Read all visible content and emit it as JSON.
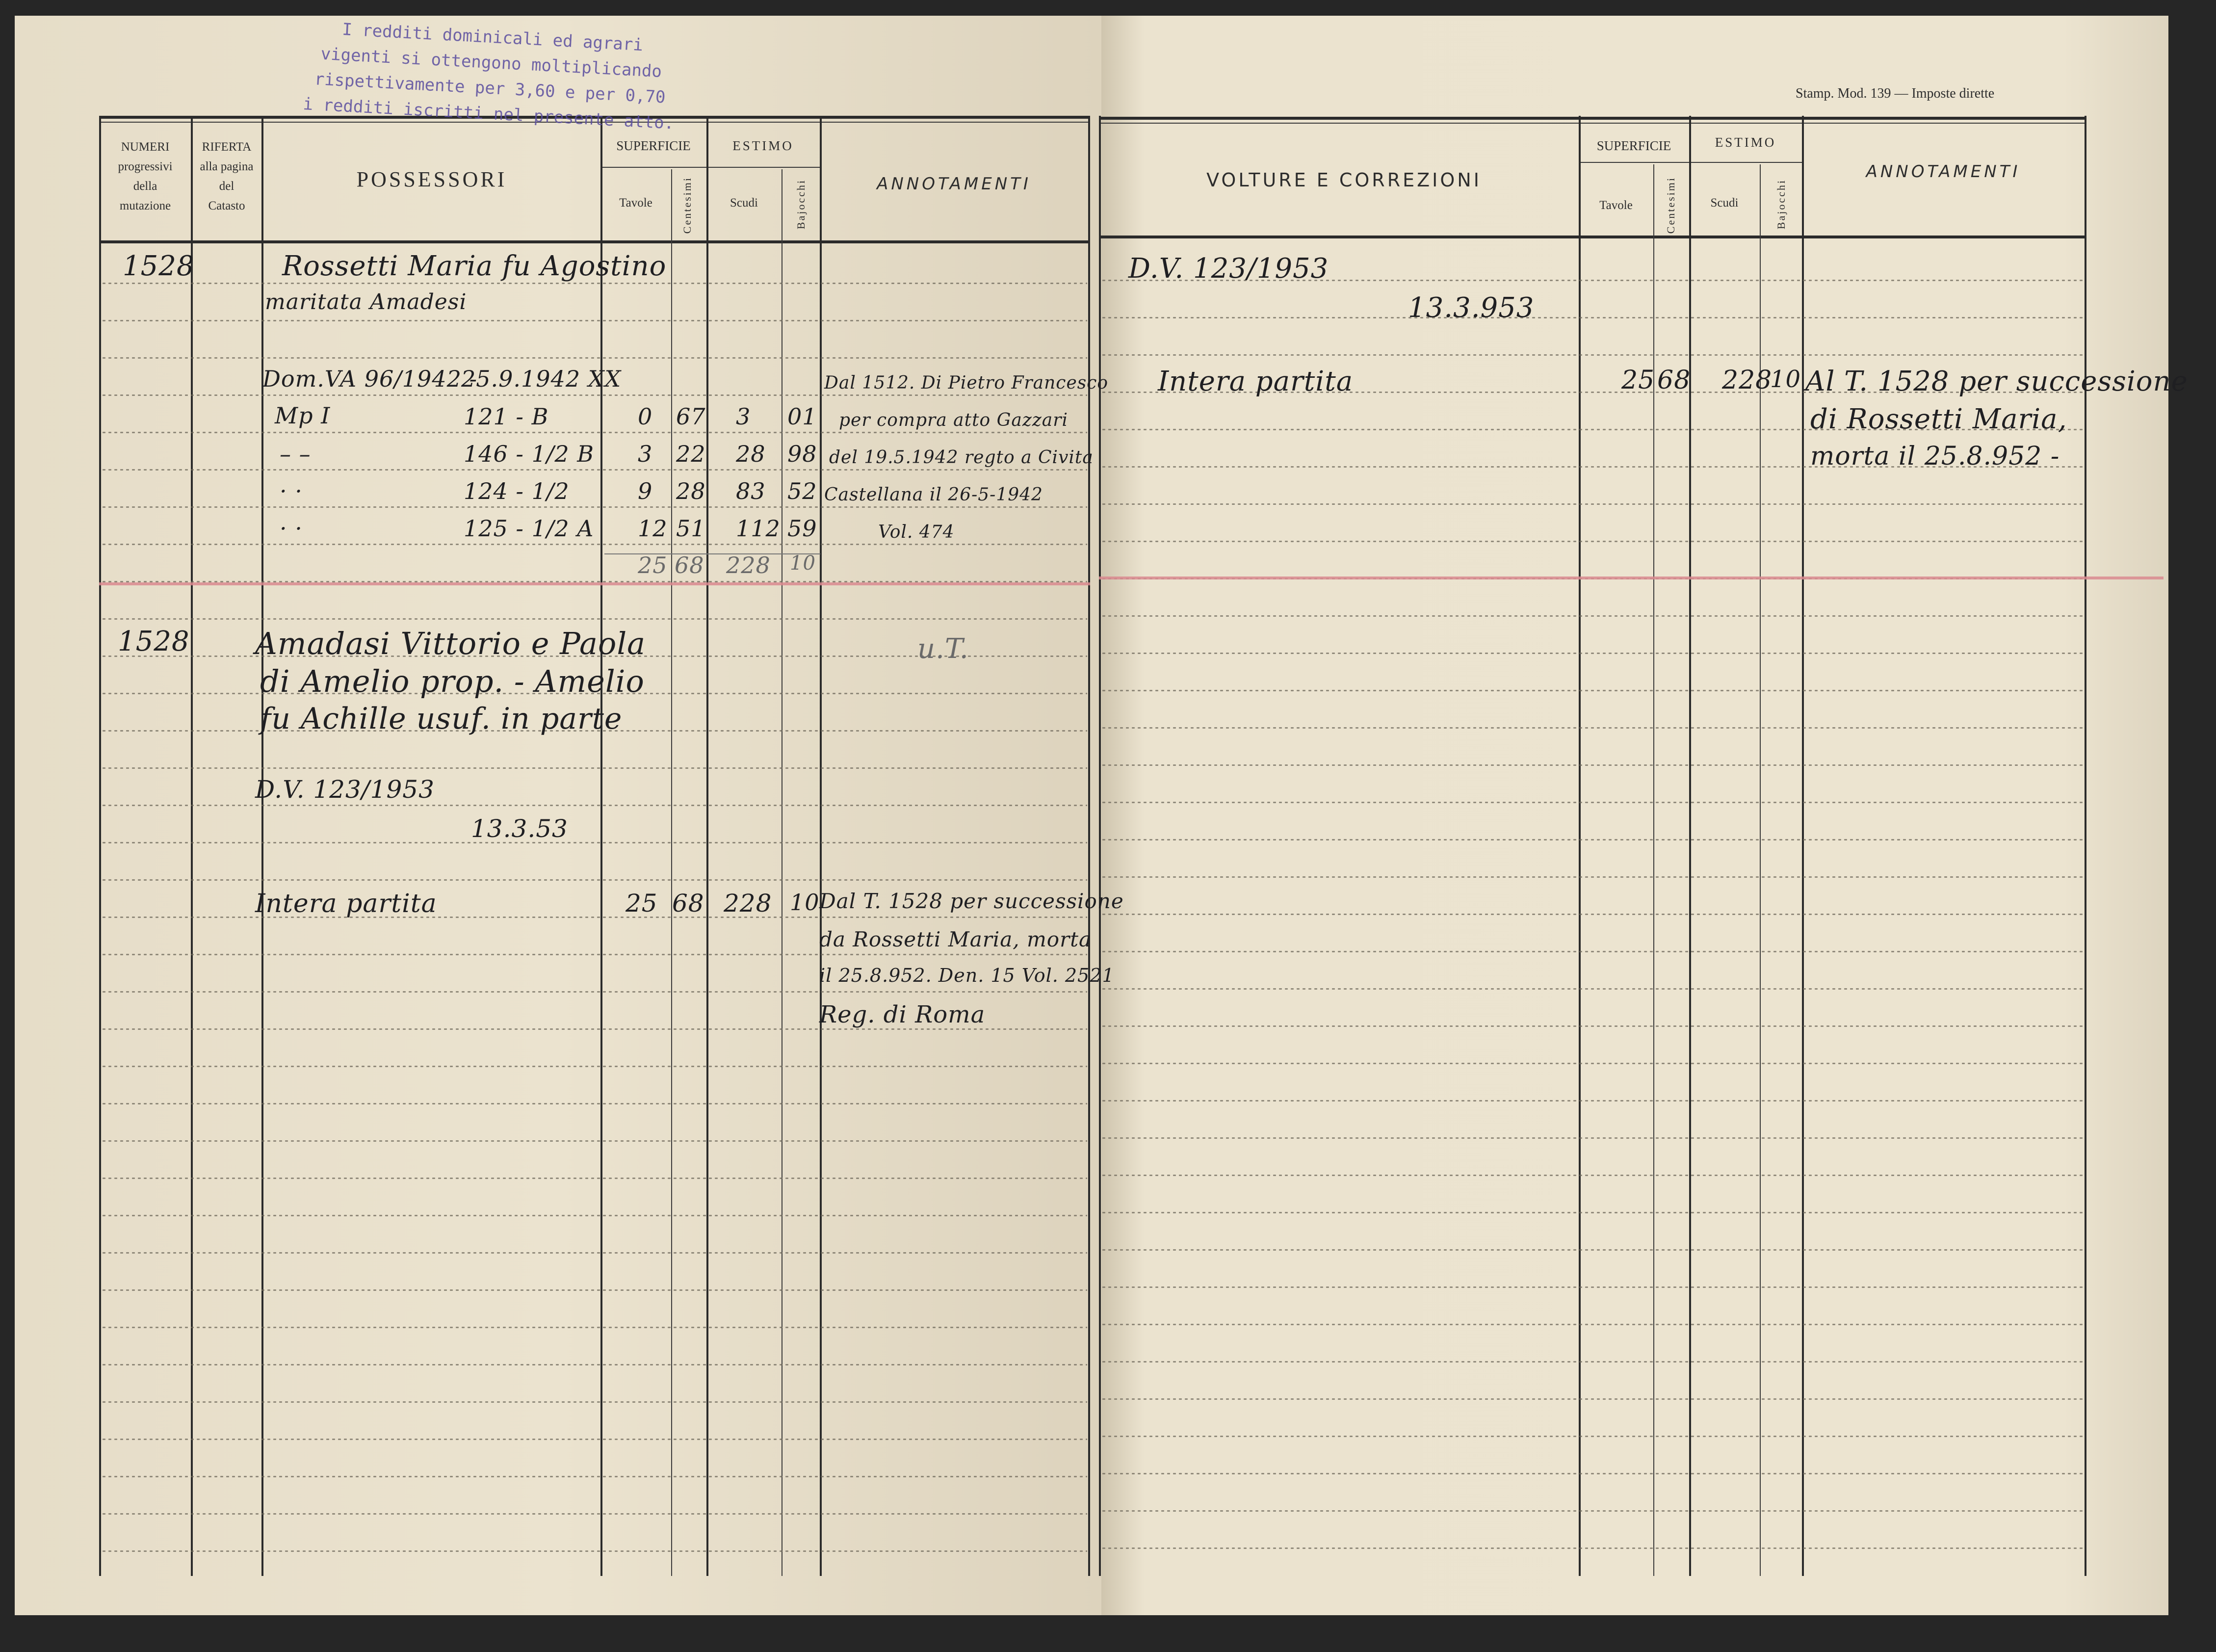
{
  "stamp": {
    "lines": [
      "I redditi dominicali ed agrari",
      "vigenti si ottengono moltiplicando",
      "rispettivamente per 3,60 e per 0,70",
      "i redditi iscritti nel presente atto."
    ],
    "color": "#5b4fa0"
  },
  "print_mark": "Stamp. Mod. 139 — Imposte dirette",
  "left_header": {
    "numeri": [
      "NUMERI",
      "progressivi",
      "della",
      "mutazione"
    ],
    "riferta": [
      "RIFERTA",
      "alla pagina",
      "del",
      "Catasto"
    ],
    "possessori": "POSSESSORI",
    "superficie": "SUPERFICIE",
    "tavole": "Tavole",
    "centesimi": "Centesimi",
    "estimo": "ESTIMO",
    "scudi": "Scudi",
    "bajocchi": "Bajocchi",
    "annotamenti": "ANNOTAMENTI"
  },
  "right_header": {
    "volture": "VOLTURE E CORREZIONI",
    "superficie": "SUPERFICIE",
    "tavole": "Tavole",
    "centesimi": "Centesimi",
    "estimo": "ESTIMO",
    "scudi": "Scudi",
    "bajocchi": "Bajocchi",
    "annotamenti": "ANNOTAMENTI"
  },
  "entries": [
    {
      "numero": "1528",
      "possessori": [
        "Rossetti Maria fu Agostino",
        "maritata Amadesi"
      ],
      "atto": "Dom.VA 96/1942 -",
      "atto_data": "25.9.1942 XX",
      "mappa": "Mp I",
      "parcels": [
        {
          "ditto": "",
          "particella": "121 - B",
          "tavole": "0",
          "centesimi": "67",
          "scudi": "3",
          "bajocchi": "01"
        },
        {
          "ditto": "–  –",
          "particella": "146 - 1/2  B",
          "tavole": "3",
          "centesimi": "22",
          "scudi": "28",
          "bajocchi": "98"
        },
        {
          "ditto": "·  ·",
          "particella": "124 - 1/2",
          "tavole": "9",
          "centesimi": "28",
          "scudi": "83",
          "bajocchi": "52"
        },
        {
          "ditto": "·  ·",
          "particella": "125 - 1/2  A",
          "tavole": "12",
          "centesimi": "51",
          "scudi": "112",
          "bajocchi": "59"
        }
      ],
      "totale": {
        "tavole": "25",
        "centesimi": "68",
        "scudi": "228",
        "bajocchi": "10"
      },
      "annotamenti": [
        "Dal 1512. Di Pietro Francesco",
        "per compra atto Gazzari",
        "del 19.5.1942 regto a Civita",
        "Castellana il 26-5-1942",
        "Vol. 474"
      ]
    },
    {
      "numero": "1528",
      "possessori": [
        "Amadasi Vittorio e Paola",
        "di Amelio prop. - Amelio",
        "fu Achille usuf. in parte"
      ],
      "atto": "D.V. 123/1953",
      "atto_data": "13.3.53",
      "partita": "Intera partita",
      "totale": {
        "tavole": "25",
        "centesimi": "68",
        "scudi": "228",
        "bajocchi": "10"
      },
      "annotamenti_top": "u.T.",
      "annotamenti": [
        "Dal T. 1528 per successione",
        "da Rossetti Maria, morta",
        "il 25.8.952. Den. 15 Vol. 2521",
        "Reg. di Roma"
      ]
    }
  ],
  "volture": {
    "atto": "D.V. 123/1953",
    "data": "13.3.953",
    "partita": "Intera partita",
    "tavole": "25",
    "centesimi": "68",
    "scudi": "228",
    "bajocchi": "10",
    "annotamenti": [
      "Al T. 1528 per successione",
      "di Rossetti Maria,",
      "morta il 25.8.952 -"
    ]
  },
  "colors": {
    "paper": "#e9e1cd",
    "ink": "#1f1f22",
    "red_rule": "#d98a8f",
    "background": "#262626"
  }
}
